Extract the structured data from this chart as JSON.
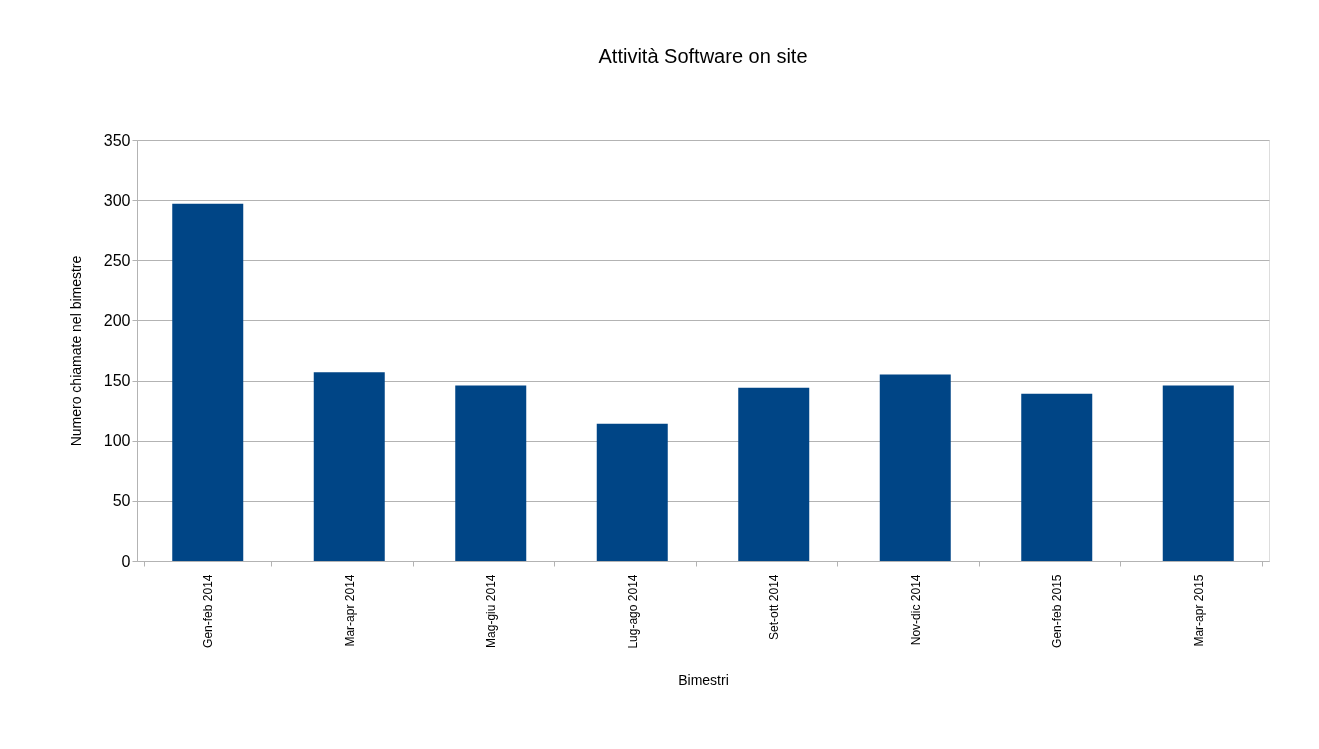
{
  "chart_data": {
    "type": "bar",
    "title": "Attività Software on site",
    "xlabel": "Bimestri",
    "ylabel": "Numero chiamate nel bimestre",
    "categories": [
      "Gen-feb 2014",
      "Mar-apr 2014",
      "Mag-giu 2014",
      "Lug-ago 2014",
      "Set-ott 2014",
      "Nov-dic 2014",
      "Gen-feb 2015",
      "Mar-apr 2015"
    ],
    "series": [
      {
        "color": "#004586",
        "values": [
          297,
          157,
          146,
          114,
          144,
          155,
          139,
          146
        ]
      }
    ],
    "ylim": [
      0,
      350
    ],
    "yticks": [
      0,
      50,
      100,
      150,
      200,
      250,
      300,
      350
    ],
    "grid": "y",
    "legend": false
  }
}
